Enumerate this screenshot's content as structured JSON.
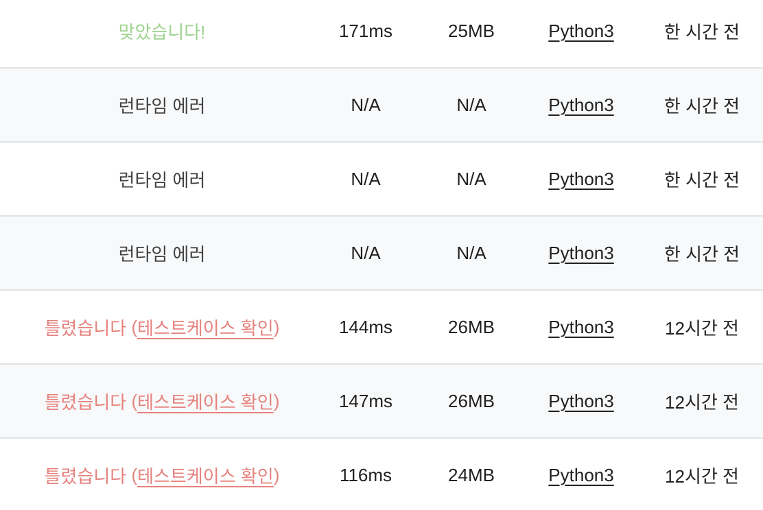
{
  "table": {
    "name": "submission-status-table",
    "columns": [
      "result",
      "time",
      "memory",
      "language",
      "submitted"
    ],
    "colors": {
      "accepted": "#9fd390",
      "wrong_answer": "#e5827d",
      "runtime_error": "#424242",
      "text": "#212121",
      "row_alt_bg": "#f8f9fa",
      "divider": "#e2e3e5"
    },
    "rows": [
      {
        "status": "accepted",
        "result": "맞았습니다!",
        "result_link": null,
        "time": "171ms",
        "memory": "25MB",
        "language": "Python3",
        "submitted": "한 시간 전"
      },
      {
        "status": "runtime-error",
        "result": "런타임 에러",
        "result_link": null,
        "time": "N/A",
        "memory": "N/A",
        "language": "Python3",
        "submitted": "한 시간 전"
      },
      {
        "status": "runtime-error",
        "result": "런타임 에러",
        "result_link": null,
        "time": "N/A",
        "memory": "N/A",
        "language": "Python3",
        "submitted": "한 시간 전"
      },
      {
        "status": "runtime-error",
        "result": "런타임 에러",
        "result_link": null,
        "time": "N/A",
        "memory": "N/A",
        "language": "Python3",
        "submitted": "한 시간 전"
      },
      {
        "status": "wrong-answer",
        "result": "틀렸습니다",
        "result_link": "테스트케이스 확인",
        "time": "144ms",
        "memory": "26MB",
        "language": "Python3",
        "submitted": "12시간 전"
      },
      {
        "status": "wrong-answer",
        "result": "틀렸습니다",
        "result_link": "테스트케이스 확인",
        "time": "147ms",
        "memory": "26MB",
        "language": "Python3",
        "submitted": "12시간 전"
      },
      {
        "status": "wrong-answer",
        "result": "틀렸습니다",
        "result_link": "테스트케이스 확인",
        "time": "116ms",
        "memory": "24MB",
        "language": "Python3",
        "submitted": "12시간 전"
      }
    ]
  }
}
